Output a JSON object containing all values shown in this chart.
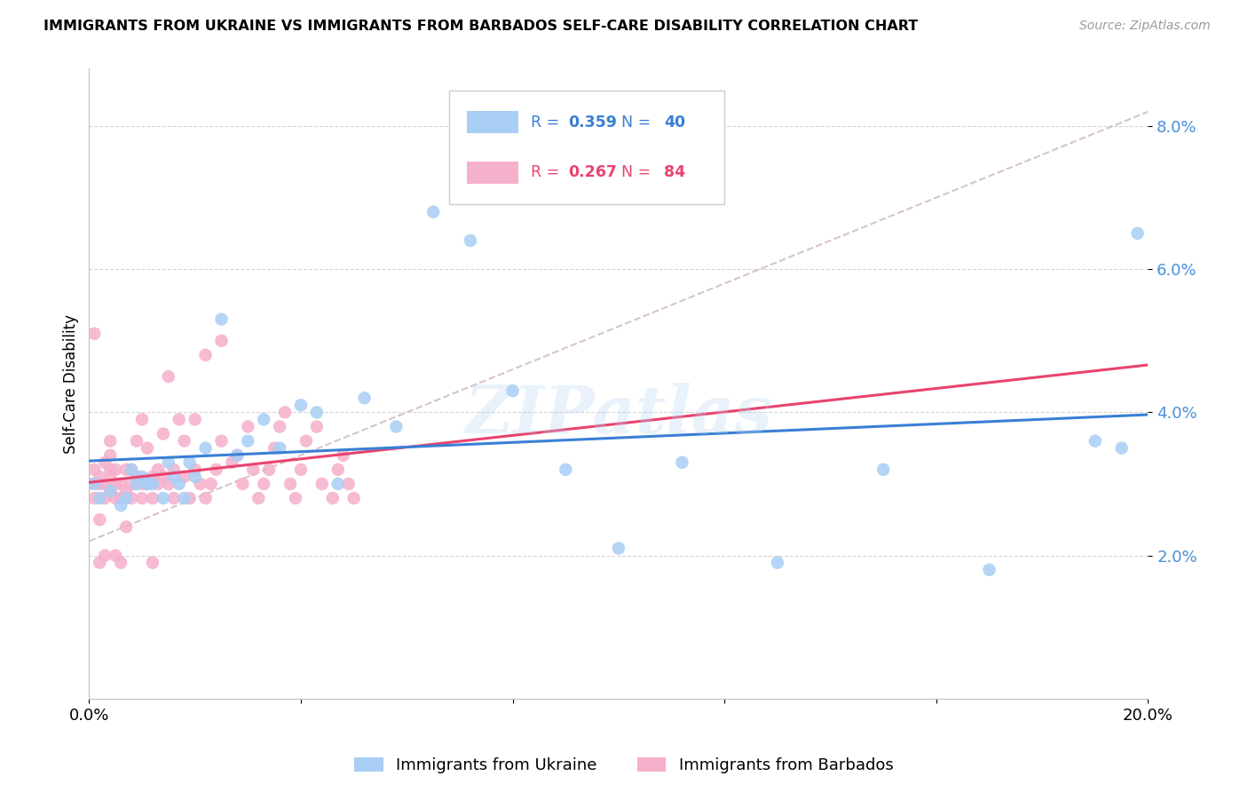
{
  "title": "IMMIGRANTS FROM UKRAINE VS IMMIGRANTS FROM BARBADOS SELF-CARE DISABILITY CORRELATION CHART",
  "source": "Source: ZipAtlas.com",
  "ylabel": "Self-Care Disability",
  "xlim": [
    0.0,
    0.2
  ],
  "ylim": [
    0.0,
    0.088
  ],
  "yticks": [
    0.02,
    0.04,
    0.06,
    0.08
  ],
  "ytick_labels": [
    "2.0%",
    "4.0%",
    "6.0%",
    "8.0%"
  ],
  "xticks": [
    0.0,
    0.04,
    0.08,
    0.12,
    0.16,
    0.2
  ],
  "xtick_labels": [
    "0.0%",
    "",
    "",
    "",
    "",
    "20.0%"
  ],
  "ukraine_color": "#a8cef5",
  "barbados_color": "#f5b0cc",
  "ukraine_line_color": "#3a7fd5",
  "barbados_line_color": "#e8436e",
  "dashed_line_color": "#c8b0bc",
  "ukraine_R": 0.359,
  "ukraine_N": 40,
  "barbados_R": 0.267,
  "barbados_N": 84,
  "watermark": "ZIPatlas",
  "ukraine_x": [
    0.001,
    0.002,
    0.004,
    0.006,
    0.007,
    0.008,
    0.009,
    0.01,
    0.011,
    0.012,
    0.014,
    0.015,
    0.016,
    0.017,
    0.018,
    0.019,
    0.02,
    0.022,
    0.025,
    0.028,
    0.03,
    0.033,
    0.036,
    0.04,
    0.043,
    0.047,
    0.052,
    0.058,
    0.065,
    0.072,
    0.08,
    0.09,
    0.1,
    0.112,
    0.13,
    0.15,
    0.17,
    0.19,
    0.195,
    0.198
  ],
  "ukraine_y": [
    0.03,
    0.028,
    0.029,
    0.027,
    0.028,
    0.032,
    0.03,
    0.031,
    0.03,
    0.03,
    0.028,
    0.033,
    0.031,
    0.03,
    0.028,
    0.033,
    0.031,
    0.035,
    0.053,
    0.034,
    0.036,
    0.039,
    0.035,
    0.041,
    0.04,
    0.03,
    0.042,
    0.038,
    0.068,
    0.064,
    0.043,
    0.032,
    0.021,
    0.033,
    0.019,
    0.032,
    0.018,
    0.036,
    0.035,
    0.065
  ],
  "barbados_x": [
    0.0,
    0.001,
    0.001,
    0.001,
    0.002,
    0.002,
    0.002,
    0.002,
    0.003,
    0.003,
    0.003,
    0.003,
    0.004,
    0.004,
    0.004,
    0.004,
    0.004,
    0.005,
    0.005,
    0.005,
    0.005,
    0.006,
    0.006,
    0.006,
    0.007,
    0.007,
    0.007,
    0.008,
    0.008,
    0.008,
    0.009,
    0.009,
    0.009,
    0.01,
    0.01,
    0.01,
    0.011,
    0.011,
    0.012,
    0.012,
    0.012,
    0.013,
    0.013,
    0.014,
    0.014,
    0.015,
    0.015,
    0.016,
    0.016,
    0.017,
    0.018,
    0.018,
    0.019,
    0.02,
    0.02,
    0.021,
    0.022,
    0.022,
    0.023,
    0.024,
    0.025,
    0.025,
    0.027,
    0.028,
    0.029,
    0.03,
    0.031,
    0.032,
    0.033,
    0.034,
    0.035,
    0.036,
    0.037,
    0.038,
    0.039,
    0.04,
    0.041,
    0.043,
    0.044,
    0.046,
    0.047,
    0.048,
    0.049,
    0.05
  ],
  "barbados_y": [
    0.03,
    0.028,
    0.032,
    0.051,
    0.03,
    0.031,
    0.025,
    0.019,
    0.028,
    0.03,
    0.033,
    0.02,
    0.029,
    0.031,
    0.032,
    0.034,
    0.036,
    0.028,
    0.03,
    0.032,
    0.02,
    0.03,
    0.028,
    0.019,
    0.029,
    0.032,
    0.024,
    0.03,
    0.032,
    0.028,
    0.03,
    0.031,
    0.036,
    0.028,
    0.03,
    0.039,
    0.03,
    0.035,
    0.031,
    0.028,
    0.019,
    0.03,
    0.032,
    0.031,
    0.037,
    0.045,
    0.03,
    0.028,
    0.032,
    0.039,
    0.036,
    0.031,
    0.028,
    0.032,
    0.039,
    0.03,
    0.028,
    0.048,
    0.03,
    0.032,
    0.05,
    0.036,
    0.033,
    0.034,
    0.03,
    0.038,
    0.032,
    0.028,
    0.03,
    0.032,
    0.035,
    0.038,
    0.04,
    0.03,
    0.028,
    0.032,
    0.036,
    0.038,
    0.03,
    0.028,
    0.032,
    0.034,
    0.03,
    0.028
  ]
}
